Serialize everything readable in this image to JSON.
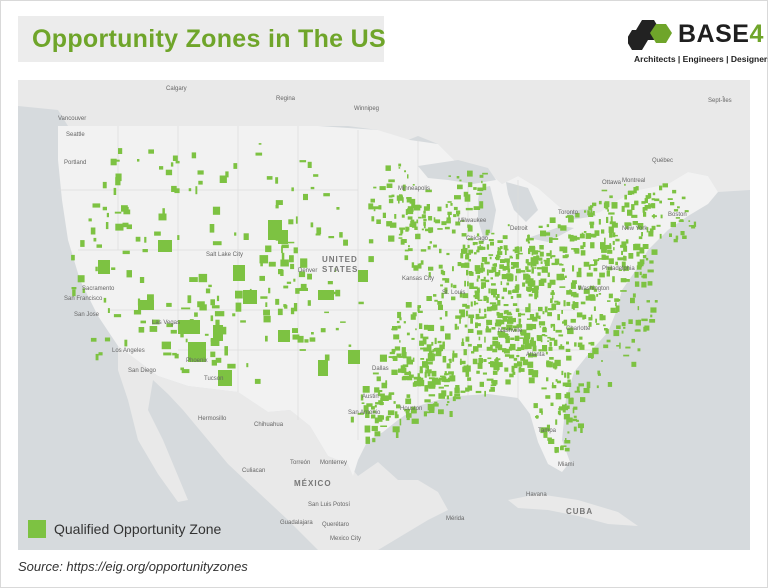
{
  "header": {
    "title": "Opportunity Zones in The US"
  },
  "logo": {
    "name": "BASE",
    "number": "4",
    "tagline": "Architects | Engineers | Designers",
    "accent_color": "#6fa52a",
    "icon": "hexagon-cube-icon"
  },
  "legend": {
    "label": "Qualified Opportunity Zone",
    "color": "#7dc242"
  },
  "source": "Source: https://eig.org/opportunityzones",
  "map_labels": {
    "countries": [
      "UNITED",
      "STATES",
      "MÉXICO",
      "CUBA"
    ],
    "cities": [
      "Calgary",
      "Regina",
      "Winnipeg",
      "Vancouver",
      "Seattle",
      "Portland",
      "Minneapolis",
      "Milwaukee",
      "Chicago",
      "Detroit",
      "Toronto",
      "Ottawa",
      "Montreal",
      "Québec",
      "Boston",
      "New York",
      "Philadelphia",
      "Washington",
      "Sacramento",
      "San Francisco",
      "San Jose",
      "Las Vegas",
      "Los Angeles",
      "San Diego",
      "Phoenix",
      "Tucson",
      "Salt Lake City",
      "Denver",
      "Kansas City",
      "St. Louis",
      "Nashville",
      "Atlanta",
      "Charlotte",
      "Dallas",
      "Houston",
      "San Antonio",
      "Austin",
      "Miami",
      "Tampa",
      "Hermosillo",
      "Chihuahua",
      "Monterrey",
      "Culiacan",
      "Torreón",
      "San Luis Potosí",
      "Guadalajara",
      "Querétaro",
      "Mexico City",
      "Havana",
      "Mérida",
      "Sept-Îles"
    ]
  },
  "colors": {
    "land_us": "#f2f2f2",
    "land_other": "#e9e9e9",
    "water": "#d6dadd",
    "zone": "#7dc242"
  }
}
